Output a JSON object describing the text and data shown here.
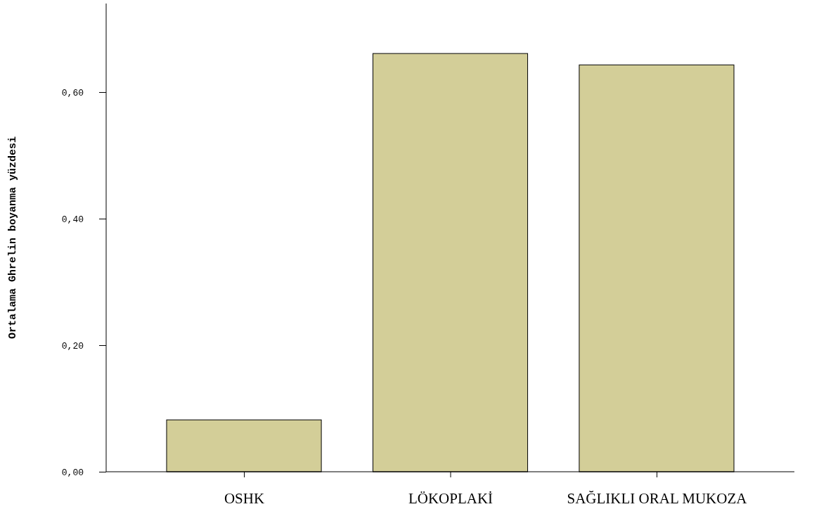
{
  "chart_data": {
    "type": "bar",
    "ylabel": "Ortalama Ghrelin boyanma yüzdesi",
    "categories": [
      "OSHK",
      "LÖKOPLAKİ",
      "SAĞLIKLI  ORAL MUKOZA"
    ],
    "values": [
      0.082,
      0.661,
      0.643
    ],
    "color": "#d3ce98",
    "ylim": [
      0,
      0.74
    ],
    "yticks": [
      {
        "value": 0,
        "label": "0,00"
      },
      {
        "value": 0.2,
        "label": "0,20"
      },
      {
        "value": 0.4,
        "label": "0,40"
      },
      {
        "value": 0.6,
        "label": "0,60"
      }
    ],
    "grid": false
  }
}
